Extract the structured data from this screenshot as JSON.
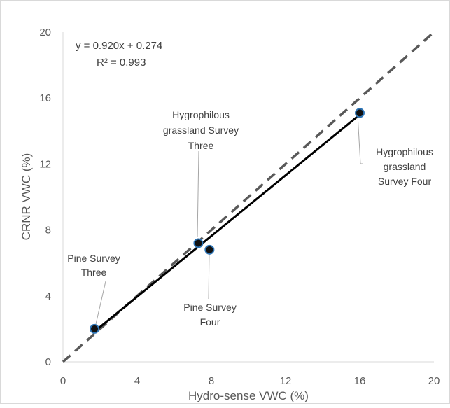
{
  "chart_data": {
    "type": "scatter",
    "title": "",
    "xlabel": "Hydro-sense VWC (%)",
    "ylabel": "CRNR VWC (%)",
    "xlim": [
      0,
      20
    ],
    "ylim": [
      0,
      20
    ],
    "xticks": [
      "0",
      "4",
      "8",
      "12",
      "16",
      "20"
    ],
    "yticks": [
      "0",
      "4",
      "8",
      "12",
      "16",
      "20"
    ],
    "grid": false,
    "points": [
      {
        "x": 1.7,
        "y": 2.0,
        "label": [
          "Pine Survey",
          "Three"
        ]
      },
      {
        "x": 7.3,
        "y": 7.2,
        "label": [
          "Hygrophilous",
          "grassland Survey",
          "Three"
        ]
      },
      {
        "x": 7.9,
        "y": 6.8,
        "label": [
          "Pine Survey",
          "Four"
        ]
      },
      {
        "x": 16.0,
        "y": 15.1,
        "label": [
          "Hygrophilous",
          "grassland",
          "Survey Four"
        ]
      }
    ],
    "trendline": {
      "slope": 0.92,
      "intercept": 0.274,
      "x_range": [
        1.7,
        16.0
      ],
      "color": "#000000"
    },
    "reference_line": {
      "x": [
        0,
        20
      ],
      "y": [
        0,
        20
      ],
      "style": "dashed",
      "color": "#595959"
    },
    "equation": "y = 0.920x + 0.274",
    "r2": "R² = 0.993",
    "marker_fill": "#111111",
    "marker_edge": "#2e75b6"
  }
}
